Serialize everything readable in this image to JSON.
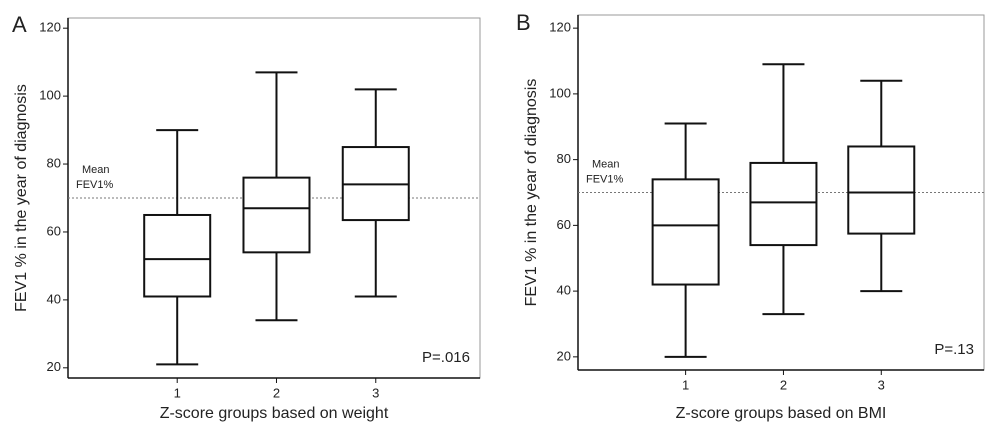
{
  "chart_data": [
    {
      "type": "box",
      "label": "A",
      "ylabel": "FEV1 % in the year of diagnosis",
      "xlabel": "Z-score groups based on weight",
      "categories": [
        "1",
        "2",
        "3"
      ],
      "min": [
        21,
        34,
        41
      ],
      "q1": [
        41,
        54,
        63.5
      ],
      "median": [
        52,
        67,
        74
      ],
      "q3": [
        65,
        76,
        85
      ],
      "max": [
        90,
        107,
        102
      ],
      "reference_line": {
        "value": 70,
        "label": [
          "Mean",
          "FEV1%"
        ]
      },
      "annotation": "P=.016",
      "ylim": [
        17,
        123
      ],
      "yticks": [
        20,
        40,
        60,
        80,
        100,
        120
      ]
    },
    {
      "type": "box",
      "label": "B",
      "ylabel": "FEV1 % in the year of diagnosis",
      "xlabel": "Z-score groups based on BMI",
      "categories": [
        "1",
        "2",
        "3"
      ],
      "min": [
        20,
        33,
        40
      ],
      "q1": [
        42,
        54,
        57.5
      ],
      "median": [
        60,
        67,
        70
      ],
      "q3": [
        74,
        79,
        84
      ],
      "max": [
        91,
        109,
        104
      ],
      "reference_line": {
        "value": 70,
        "label": [
          "Mean",
          "FEV1%"
        ]
      },
      "annotation": "P=.13",
      "ylim": [
        16,
        124
      ],
      "yticks": [
        20,
        40,
        60,
        80,
        100,
        120
      ]
    }
  ]
}
